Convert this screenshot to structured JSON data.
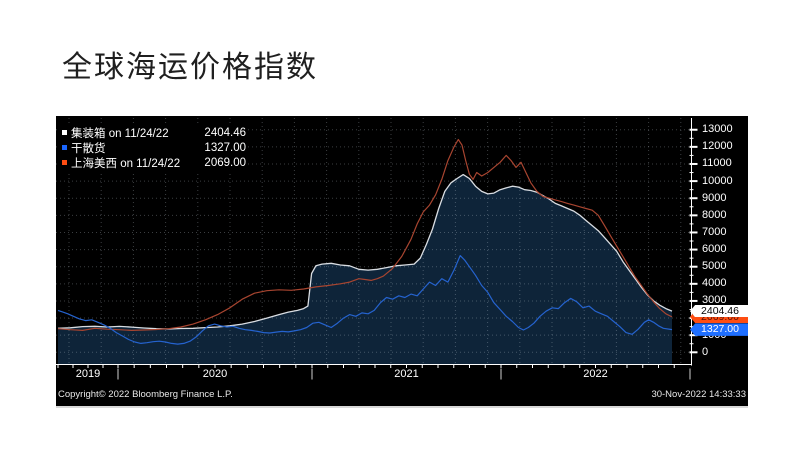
{
  "page": {
    "title": "全球海运价格指数"
  },
  "chart_data": {
    "type": "area",
    "title": "全球海运价格指数",
    "legend_position": "top-left",
    "background": "#000000",
    "grid": {
      "horizontal": true,
      "vertical": true,
      "style": "dotted"
    },
    "y_axis": {
      "side": "right",
      "min": 0,
      "max": 13000,
      "tick_step": 1000,
      "ticks": [
        0,
        1000,
        2000,
        3000,
        4000,
        5000,
        6000,
        7000,
        8000,
        9000,
        10000,
        11000,
        12000,
        13000
      ]
    },
    "x_axis": {
      "year_labels": [
        "2019",
        "2020",
        "2021",
        "2022"
      ],
      "start": "Sep 2019",
      "end": "Nov 2022"
    },
    "series": [
      {
        "name": "集装箱",
        "legend_label": "集装箱 on 11/24/22",
        "value_label": "2404.46",
        "last_value": 2404.46,
        "color": "#d9dde2",
        "swatch_color": "#ffffff",
        "tag_bg": "#ffffff",
        "tag_text": "#000000",
        "area_fill": "#0e2439",
        "style": "area",
        "points": [
          [
            0.0,
            1400
          ],
          [
            0.02,
            1430
          ],
          [
            0.04,
            1500
          ],
          [
            0.06,
            1520
          ],
          [
            0.08,
            1480
          ],
          [
            0.1,
            1510
          ],
          [
            0.12,
            1470
          ],
          [
            0.14,
            1420
          ],
          [
            0.16,
            1380
          ],
          [
            0.18,
            1360
          ],
          [
            0.2,
            1390
          ],
          [
            0.22,
            1400
          ],
          [
            0.24,
            1440
          ],
          [
            0.26,
            1480
          ],
          [
            0.28,
            1550
          ],
          [
            0.3,
            1650
          ],
          [
            0.32,
            1800
          ],
          [
            0.34,
            2000
          ],
          [
            0.36,
            2200
          ],
          [
            0.375,
            2350
          ],
          [
            0.39,
            2450
          ],
          [
            0.4,
            2550
          ],
          [
            0.407,
            2700
          ],
          [
            0.413,
            4600
          ],
          [
            0.42,
            5050
          ],
          [
            0.43,
            5150
          ],
          [
            0.445,
            5200
          ],
          [
            0.46,
            5100
          ],
          [
            0.475,
            5050
          ],
          [
            0.49,
            4850
          ],
          [
            0.505,
            4800
          ],
          [
            0.52,
            4850
          ],
          [
            0.535,
            4950
          ],
          [
            0.55,
            5050
          ],
          [
            0.565,
            5100
          ],
          [
            0.58,
            5150
          ],
          [
            0.59,
            5500
          ],
          [
            0.6,
            6300
          ],
          [
            0.61,
            7200
          ],
          [
            0.62,
            8400
          ],
          [
            0.63,
            9400
          ],
          [
            0.64,
            9900
          ],
          [
            0.65,
            10150
          ],
          [
            0.66,
            10380
          ],
          [
            0.67,
            10150
          ],
          [
            0.68,
            9700
          ],
          [
            0.69,
            9400
          ],
          [
            0.7,
            9250
          ],
          [
            0.71,
            9300
          ],
          [
            0.72,
            9500
          ],
          [
            0.73,
            9600
          ],
          [
            0.74,
            9700
          ],
          [
            0.75,
            9650
          ],
          [
            0.76,
            9500
          ],
          [
            0.77,
            9450
          ],
          [
            0.78,
            9350
          ],
          [
            0.79,
            9150
          ],
          [
            0.8,
            8950
          ],
          [
            0.81,
            8700
          ],
          [
            0.82,
            8550
          ],
          [
            0.83,
            8400
          ],
          [
            0.84,
            8250
          ],
          [
            0.85,
            8000
          ],
          [
            0.86,
            7700
          ],
          [
            0.87,
            7400
          ],
          [
            0.88,
            7100
          ],
          [
            0.89,
            6700
          ],
          [
            0.9,
            6300
          ],
          [
            0.91,
            5900
          ],
          [
            0.92,
            5300
          ],
          [
            0.93,
            4800
          ],
          [
            0.94,
            4300
          ],
          [
            0.95,
            3800
          ],
          [
            0.96,
            3350
          ],
          [
            0.97,
            3000
          ],
          [
            0.98,
            2750
          ],
          [
            0.99,
            2550
          ],
          [
            1.0,
            2404.46
          ]
        ]
      },
      {
        "name": "干散货",
        "legend_label": "干散货",
        "value_label": "1327.00",
        "last_value": 1327.0,
        "color": "#2563cf",
        "swatch_color": "#1a66ff",
        "tag_bg": "#1f6fff",
        "tag_text": "#ffffff",
        "style": "line",
        "points": [
          [
            0.0,
            2450
          ],
          [
            0.008,
            2350
          ],
          [
            0.016,
            2250
          ],
          [
            0.025,
            2100
          ],
          [
            0.035,
            1950
          ],
          [
            0.045,
            1850
          ],
          [
            0.055,
            1900
          ],
          [
            0.065,
            1750
          ],
          [
            0.075,
            1600
          ],
          [
            0.085,
            1400
          ],
          [
            0.095,
            1150
          ],
          [
            0.105,
            950
          ],
          [
            0.115,
            750
          ],
          [
            0.125,
            600
          ],
          [
            0.135,
            520
          ],
          [
            0.145,
            560
          ],
          [
            0.155,
            620
          ],
          [
            0.165,
            650
          ],
          [
            0.175,
            600
          ],
          [
            0.185,
            520
          ],
          [
            0.195,
            480
          ],
          [
            0.205,
            520
          ],
          [
            0.215,
            650
          ],
          [
            0.225,
            900
          ],
          [
            0.235,
            1250
          ],
          [
            0.245,
            1550
          ],
          [
            0.255,
            1650
          ],
          [
            0.265,
            1550
          ],
          [
            0.275,
            1480
          ],
          [
            0.285,
            1520
          ],
          [
            0.295,
            1400
          ],
          [
            0.305,
            1320
          ],
          [
            0.315,
            1280
          ],
          [
            0.325,
            1220
          ],
          [
            0.335,
            1150
          ],
          [
            0.345,
            1130
          ],
          [
            0.355,
            1180
          ],
          [
            0.365,
            1220
          ],
          [
            0.375,
            1190
          ],
          [
            0.385,
            1250
          ],
          [
            0.395,
            1320
          ],
          [
            0.405,
            1450
          ],
          [
            0.415,
            1700
          ],
          [
            0.425,
            1750
          ],
          [
            0.435,
            1600
          ],
          [
            0.445,
            1450
          ],
          [
            0.455,
            1700
          ],
          [
            0.465,
            2000
          ],
          [
            0.475,
            2200
          ],
          [
            0.485,
            2100
          ],
          [
            0.495,
            2300
          ],
          [
            0.505,
            2250
          ],
          [
            0.515,
            2450
          ],
          [
            0.525,
            2900
          ],
          [
            0.535,
            3200
          ],
          [
            0.545,
            3100
          ],
          [
            0.555,
            3300
          ],
          [
            0.565,
            3200
          ],
          [
            0.575,
            3400
          ],
          [
            0.585,
            3300
          ],
          [
            0.595,
            3700
          ],
          [
            0.605,
            4100
          ],
          [
            0.615,
            3900
          ],
          [
            0.625,
            4300
          ],
          [
            0.635,
            4100
          ],
          [
            0.645,
            4800
          ],
          [
            0.655,
            5650
          ],
          [
            0.662,
            5400
          ],
          [
            0.67,
            5000
          ],
          [
            0.68,
            4500
          ],
          [
            0.69,
            3900
          ],
          [
            0.7,
            3500
          ],
          [
            0.71,
            2900
          ],
          [
            0.72,
            2500
          ],
          [
            0.73,
            2100
          ],
          [
            0.74,
            1800
          ],
          [
            0.75,
            1450
          ],
          [
            0.758,
            1300
          ],
          [
            0.766,
            1450
          ],
          [
            0.775,
            1700
          ],
          [
            0.785,
            2100
          ],
          [
            0.795,
            2400
          ],
          [
            0.805,
            2600
          ],
          [
            0.815,
            2550
          ],
          [
            0.825,
            2900
          ],
          [
            0.835,
            3150
          ],
          [
            0.845,
            2950
          ],
          [
            0.855,
            2600
          ],
          [
            0.865,
            2700
          ],
          [
            0.875,
            2400
          ],
          [
            0.885,
            2250
          ],
          [
            0.895,
            2100
          ],
          [
            0.905,
            1800
          ],
          [
            0.915,
            1500
          ],
          [
            0.925,
            1150
          ],
          [
            0.935,
            1050
          ],
          [
            0.945,
            1350
          ],
          [
            0.955,
            1750
          ],
          [
            0.962,
            1900
          ],
          [
            0.97,
            1750
          ],
          [
            0.978,
            1550
          ],
          [
            0.986,
            1400
          ],
          [
            1.0,
            1327
          ]
        ]
      },
      {
        "name": "上海美西",
        "legend_label": "上海美西 on 11/24/22",
        "value_label": "2069.00",
        "last_value": 2069.0,
        "color": "#a84530",
        "swatch_color": "#fe4d12",
        "tag_bg": "#fe4d12",
        "tag_text": "#5c1000",
        "style": "line",
        "points": [
          [
            0.0,
            1380
          ],
          [
            0.02,
            1320
          ],
          [
            0.04,
            1280
          ],
          [
            0.06,
            1400
          ],
          [
            0.08,
            1350
          ],
          [
            0.1,
            1320
          ],
          [
            0.12,
            1280
          ],
          [
            0.14,
            1300
          ],
          [
            0.16,
            1330
          ],
          [
            0.18,
            1380
          ],
          [
            0.2,
            1480
          ],
          [
            0.22,
            1650
          ],
          [
            0.24,
            1900
          ],
          [
            0.26,
            2200
          ],
          [
            0.28,
            2600
          ],
          [
            0.3,
            3100
          ],
          [
            0.32,
            3450
          ],
          [
            0.34,
            3600
          ],
          [
            0.36,
            3650
          ],
          [
            0.38,
            3620
          ],
          [
            0.4,
            3700
          ],
          [
            0.42,
            3820
          ],
          [
            0.44,
            3900
          ],
          [
            0.46,
            4000
          ],
          [
            0.475,
            4100
          ],
          [
            0.49,
            4300
          ],
          [
            0.5,
            4250
          ],
          [
            0.51,
            4200
          ],
          [
            0.52,
            4300
          ],
          [
            0.53,
            4450
          ],
          [
            0.545,
            4900
          ],
          [
            0.56,
            5600
          ],
          [
            0.575,
            6600
          ],
          [
            0.585,
            7500
          ],
          [
            0.595,
            8200
          ],
          [
            0.605,
            8600
          ],
          [
            0.615,
            9200
          ],
          [
            0.625,
            10100
          ],
          [
            0.635,
            11200
          ],
          [
            0.645,
            12000
          ],
          [
            0.652,
            12430
          ],
          [
            0.658,
            12100
          ],
          [
            0.664,
            11200
          ],
          [
            0.67,
            10400
          ],
          [
            0.676,
            10100
          ],
          [
            0.682,
            10500
          ],
          [
            0.69,
            10300
          ],
          [
            0.7,
            10500
          ],
          [
            0.71,
            10800
          ],
          [
            0.72,
            11100
          ],
          [
            0.73,
            11500
          ],
          [
            0.738,
            11200
          ],
          [
            0.746,
            10800
          ],
          [
            0.754,
            11100
          ],
          [
            0.762,
            10500
          ],
          [
            0.77,
            9900
          ],
          [
            0.78,
            9400
          ],
          [
            0.79,
            9100
          ],
          [
            0.8,
            9000
          ],
          [
            0.81,
            8900
          ],
          [
            0.82,
            8800
          ],
          [
            0.83,
            8700
          ],
          [
            0.84,
            8600
          ],
          [
            0.85,
            8500
          ],
          [
            0.86,
            8400
          ],
          [
            0.87,
            8300
          ],
          [
            0.88,
            8000
          ],
          [
            0.89,
            7400
          ],
          [
            0.9,
            6800
          ],
          [
            0.91,
            6200
          ],
          [
            0.92,
            5600
          ],
          [
            0.93,
            5000
          ],
          [
            0.94,
            4400
          ],
          [
            0.95,
            3900
          ],
          [
            0.96,
            3400
          ],
          [
            0.97,
            2950
          ],
          [
            0.98,
            2550
          ],
          [
            0.99,
            2250
          ],
          [
            1.0,
            2069
          ]
        ]
      }
    ]
  },
  "footer": {
    "copyright": "Copyright© 2022 Bloomberg Finance L.P.",
    "timestamp": "30-Nov-2022 14:33:33"
  }
}
